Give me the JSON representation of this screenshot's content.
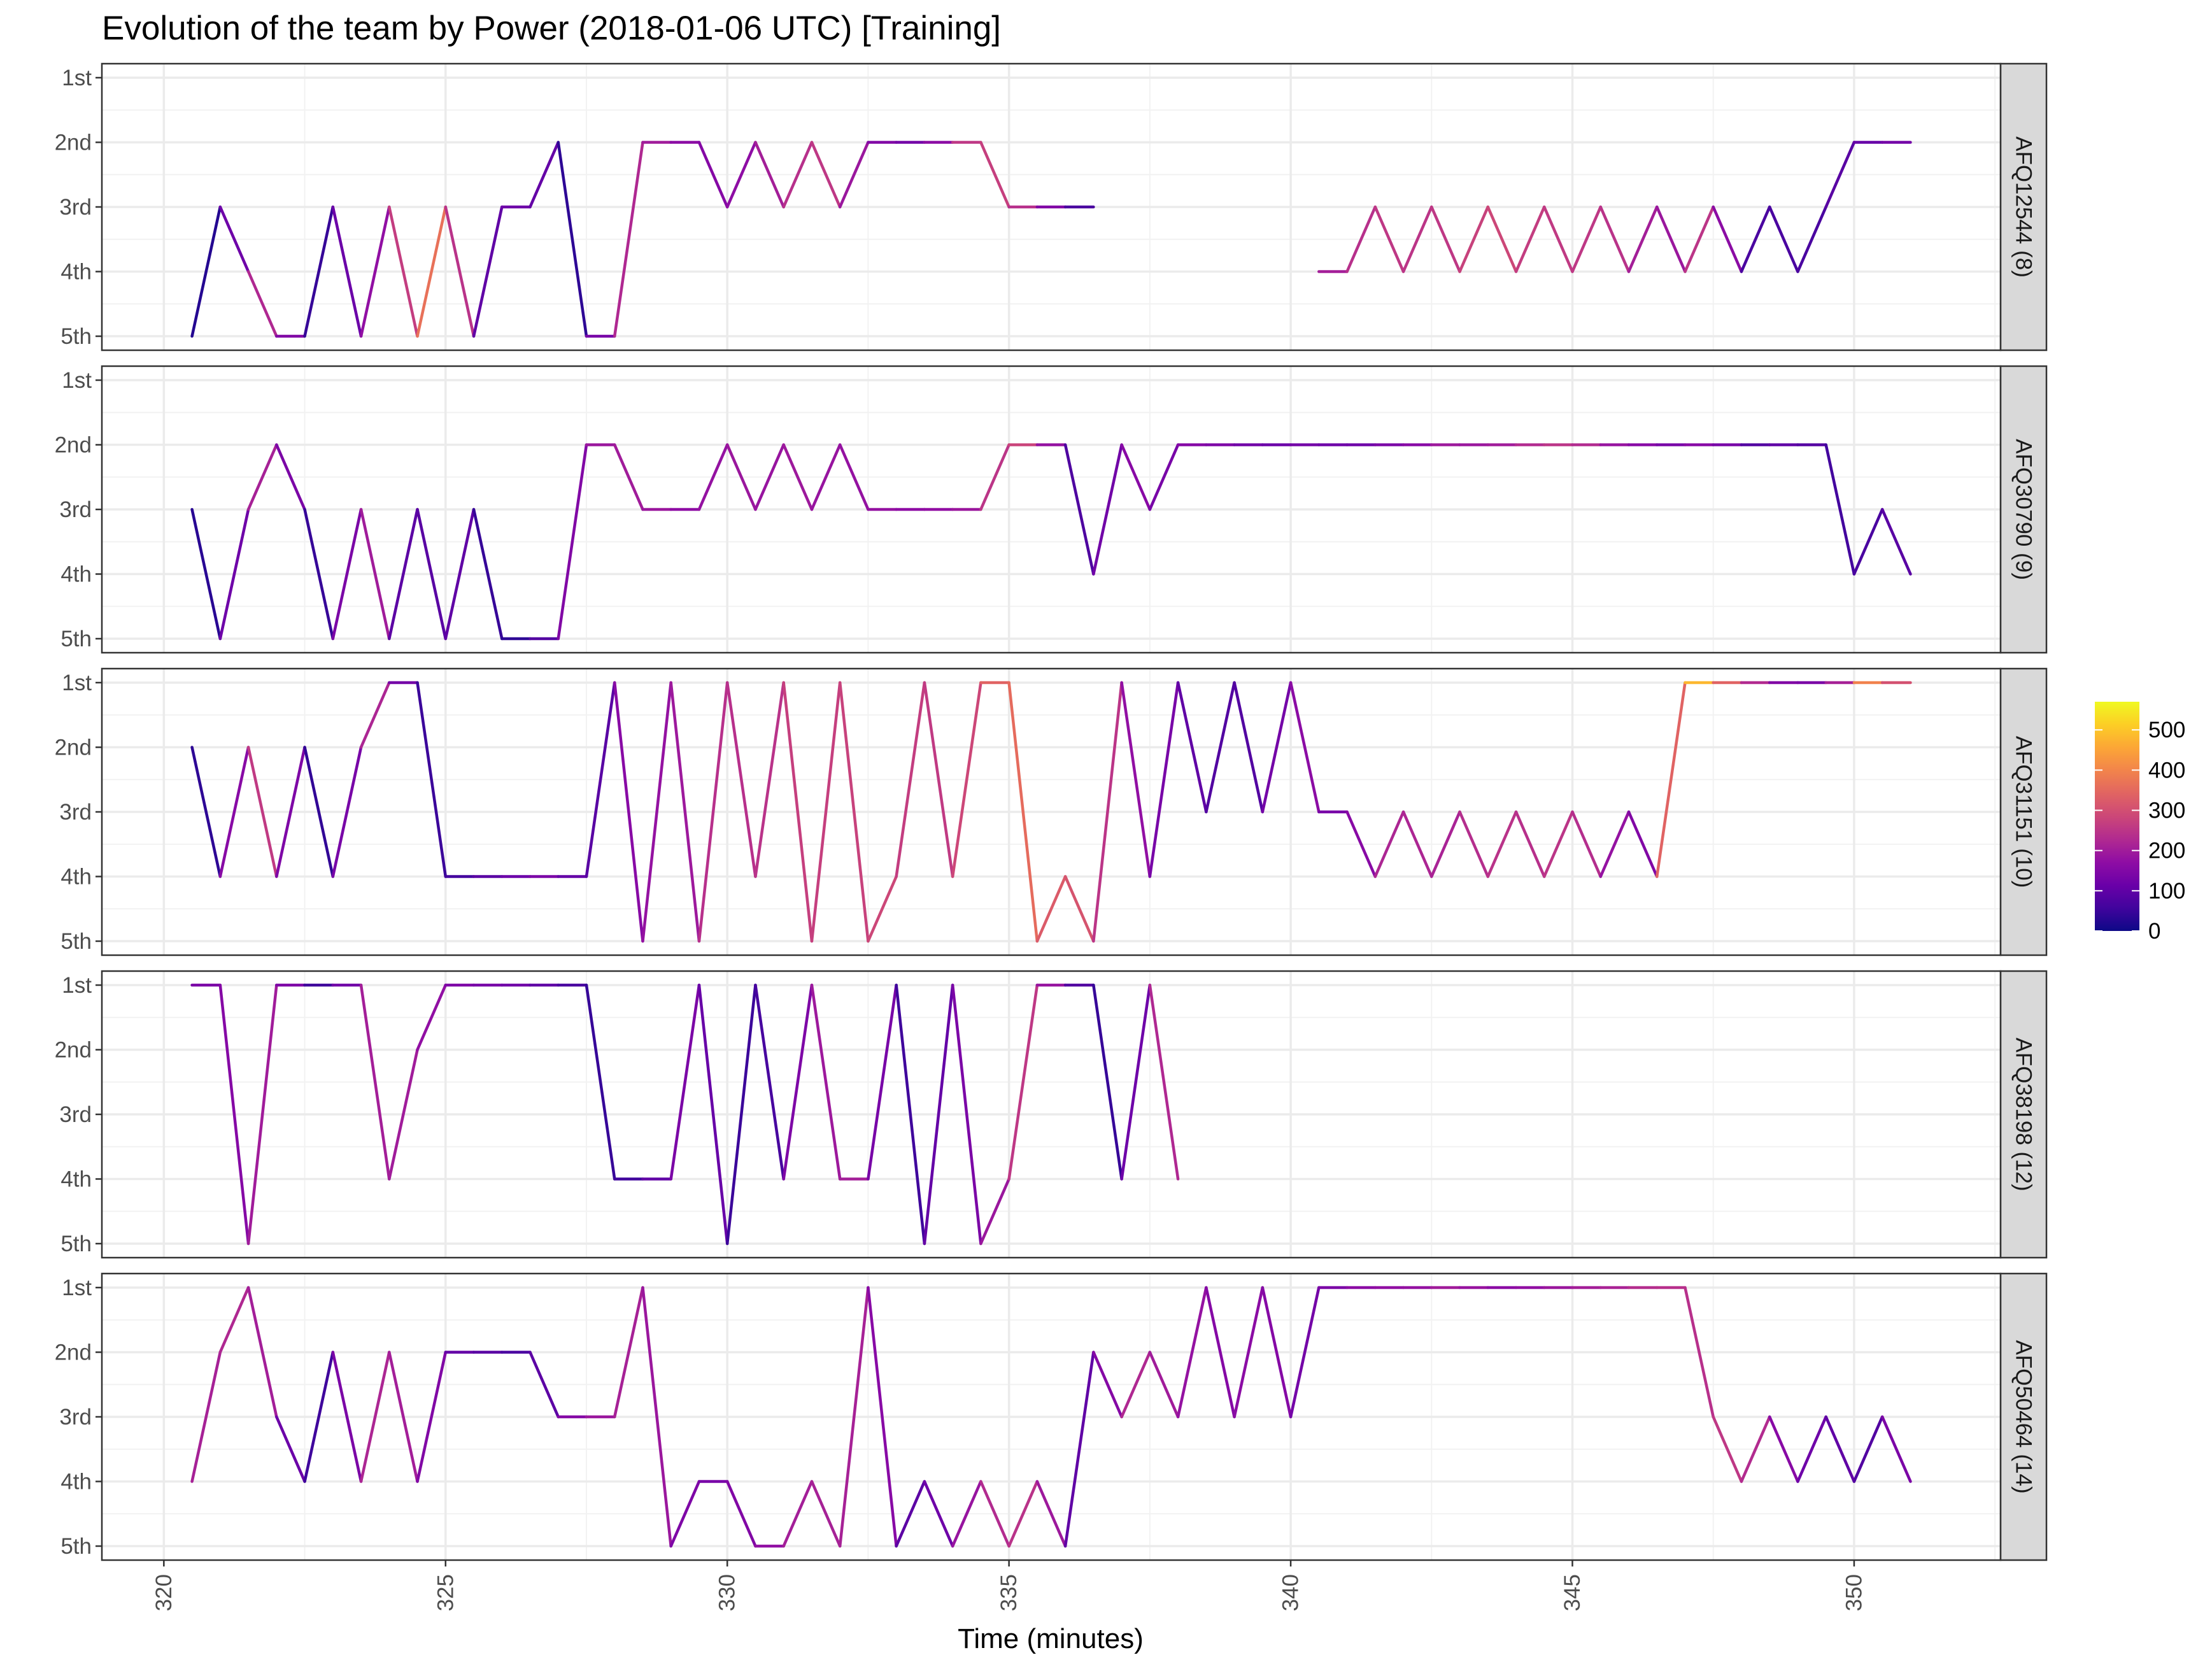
{
  "chart_data": {
    "type": "line",
    "title": "Evolution of the team by Power (2018-01-06 UTC) [Training]",
    "xlabel": "Time (minutes)",
    "ylabel": "",
    "xlim": [
      318.9,
      352.6
    ],
    "xticks": [
      320,
      325,
      330,
      335,
      340,
      345,
      350
    ],
    "x_tick_labels": [
      "320",
      "325",
      "330",
      "335",
      "340",
      "345",
      "350"
    ],
    "y_categories": [
      "1st",
      "2nd",
      "3rd",
      "4th",
      "5th"
    ],
    "grid": true,
    "color_scale": {
      "name": "plasma",
      "limits": [
        0,
        570
      ],
      "ticks": [
        0,
        100,
        200,
        300,
        400,
        500
      ],
      "tick_labels": [
        "0",
        "100",
        "200",
        "300",
        "400",
        "500"
      ],
      "legend_position": "right",
      "stops": [
        "#0d0887",
        "#41049d",
        "#6a00a8",
        "#8f0da4",
        "#b12a90",
        "#cc4778",
        "#e16462",
        "#f2844b",
        "#fca636",
        "#fcce25",
        "#f0f921"
      ]
    },
    "panels": [
      {
        "label": "AFQ12544 (8)",
        "segments": [
          {
            "x": [
              320.5,
              321.0,
              321.5,
              322.0,
              322.5,
              323.0,
              323.5,
              324.0,
              324.5,
              325.0,
              325.5,
              326.0,
              326.5,
              327.0,
              327.5,
              328.0,
              328.5,
              329.0,
              329.5,
              330.0,
              330.5,
              331.0,
              331.5,
              332.0,
              332.5,
              333.0,
              333.5,
              334.0,
              334.5,
              335.0,
              335.5,
              336.0,
              336.5
            ],
            "y": [
              5,
              3,
              4,
              5,
              5,
              3,
              5,
              3,
              5,
              3,
              5,
              3,
              3,
              2,
              5,
              5,
              2,
              2,
              2,
              3,
              2,
              3,
              2,
              3,
              2,
              2,
              2,
              2,
              2,
              3,
              3,
              3,
              3
            ],
            "power": [
              20,
              30,
              210,
              240,
              60,
              30,
              200,
              150,
              380,
              350,
              140,
              60,
              180,
              30,
              40,
              230,
              220,
              180,
              150,
              160,
              180,
              230,
              250,
              260,
              120,
              180,
              80,
              250,
              260,
              280,
              200,
              100,
              40
            ]
          },
          {
            "x": [
              340.5,
              341.0,
              341.5,
              342.0,
              342.5,
              343.0,
              343.5,
              344.0,
              344.5,
              345.0,
              345.5,
              346.0,
              346.5,
              347.0,
              347.5,
              348.0,
              348.5,
              349.0,
              349.5,
              350.0,
              350.5,
              351.0
            ],
            "y": [
              4,
              4,
              3,
              4,
              3,
              4,
              3,
              4,
              3,
              4,
              3,
              4,
              3,
              4,
              3,
              4,
              3,
              4,
              3,
              2,
              2,
              2
            ],
            "power": [
              180,
              230,
              250,
              260,
              240,
              270,
              280,
              290,
              240,
              280,
              230,
              260,
              150,
              230,
              270,
              60,
              80,
              60,
              80,
              100,
              120,
              140
            ]
          }
        ]
      },
      {
        "label": "AFQ30790 (9)",
        "segments": [
          {
            "x": [
              320.5,
              321.0,
              321.5,
              322.0,
              322.5,
              323.0,
              323.5,
              324.0,
              324.5,
              325.0,
              325.5,
              326.0,
              326.5,
              327.0,
              327.5,
              328.0,
              328.5,
              329.0,
              329.5,
              330.0,
              330.5,
              331.0,
              331.5,
              332.0,
              332.5,
              333.0,
              333.5,
              334.0,
              334.5,
              335.0,
              335.5,
              336.0,
              336.5,
              337.0,
              337.5,
              338.0,
              338.5,
              339.0,
              339.5,
              340.0,
              340.5,
              341.0,
              341.5,
              342.0,
              342.5,
              343.0,
              343.5,
              344.0,
              344.5,
              345.0,
              345.5,
              346.0,
              346.5,
              347.0,
              347.5,
              348.0,
              348.5,
              349.0,
              349.5,
              350.0,
              350.5,
              351.0
            ],
            "y": [
              3,
              5,
              3,
              2,
              3,
              5,
              3,
              5,
              3,
              5,
              3,
              5,
              5,
              5,
              2,
              2,
              3,
              3,
              3,
              2,
              3,
              2,
              3,
              2,
              3,
              3,
              3,
              3,
              3,
              2,
              2,
              2,
              4,
              2,
              3,
              2,
              2,
              2,
              2,
              2,
              2,
              2,
              2,
              2,
              2,
              2,
              2,
              2,
              2,
              2,
              2,
              2,
              2,
              2,
              2,
              2,
              2,
              2,
              2,
              4,
              3,
              4
            ],
            "power": [
              20,
              40,
              200,
              220,
              60,
              30,
              250,
              150,
              40,
              140,
              60,
              30,
              40,
              120,
              180,
              200,
              200,
              180,
              160,
              200,
              180,
              190,
              200,
              170,
              190,
              170,
              170,
              180,
              200,
              300,
              260,
              100,
              50,
              200,
              120,
              150,
              160,
              130,
              120,
              110,
              150,
              90,
              150,
              130,
              190,
              200,
              180,
              220,
              240,
              260,
              200,
              170,
              150,
              120,
              200,
              70,
              90,
              110,
              60,
              60,
              80,
              100
            ]
          }
        ]
      },
      {
        "label": "AFQ31151 (10)",
        "segments": [
          {
            "x": [
              320.5,
              321.0,
              321.5,
              322.0,
              322.5,
              323.0,
              323.5,
              324.0,
              324.5,
              325.0,
              325.5,
              326.0,
              326.5,
              327.0,
              327.5,
              328.0,
              328.5,
              329.0,
              329.5,
              330.0,
              330.5,
              331.0,
              331.5,
              332.0,
              332.5,
              333.0,
              333.5,
              334.0,
              334.5,
              335.0,
              335.5,
              336.0,
              336.5,
              337.0,
              337.5,
              338.0,
              338.5,
              339.0,
              339.5,
              340.0,
              340.5,
              341.0,
              341.5,
              342.0,
              342.5,
              343.0,
              343.5,
              344.0,
              344.5,
              345.0,
              345.5,
              346.0,
              346.5,
              347.0,
              347.5,
              348.0,
              348.5,
              349.0,
              349.5,
              350.0,
              350.5,
              351.0
            ],
            "y": [
              2,
              4,
              2,
              4,
              2,
              4,
              2,
              1,
              1,
              4,
              4,
              4,
              4,
              4,
              4,
              1,
              5,
              1,
              5,
              1,
              4,
              1,
              5,
              1,
              5,
              4,
              1,
              4,
              1,
              1,
              5,
              4,
              5,
              1,
              4,
              1,
              3,
              1,
              3,
              1,
              3,
              3,
              4,
              3,
              4,
              3,
              4,
              3,
              4,
              3,
              4,
              3,
              4,
              1,
              1,
              1,
              1,
              1,
              1,
              1,
              1,
              1
            ],
            "power": [
              30,
              40,
              280,
              240,
              50,
              30,
              240,
              200,
              60,
              40,
              80,
              100,
              130,
              150,
              60,
              120,
              200,
              160,
              230,
              250,
              230,
              260,
              280,
              260,
              290,
              280,
              250,
              270,
              300,
              380,
              330,
              320,
              300,
              200,
              150,
              120,
              80,
              80,
              80,
              180,
              150,
              120,
              200,
              240,
              200,
              230,
              240,
              250,
              230,
              270,
              200,
              160,
              140,
              540,
              420,
              260,
              200,
              100,
              180,
              240,
              550,
              60
            ]
          }
        ]
      },
      {
        "label": "AFQ38198 (12)",
        "segments": [
          {
            "x": [
              320.5,
              321.0,
              321.5,
              322.0,
              322.5,
              323.0,
              323.5,
              324.0,
              324.5,
              325.0,
              325.5,
              326.0,
              326.5,
              327.0,
              327.5,
              328.0,
              328.5,
              329.0,
              329.5,
              330.0,
              330.5,
              331.0,
              331.5,
              332.0,
              332.5,
              333.0,
              333.5,
              334.0,
              334.5,
              335.0,
              335.5,
              336.0,
              336.5,
              337.0,
              337.5,
              338.0
            ],
            "y": [
              1,
              1,
              5,
              1,
              1,
              1,
              1,
              4,
              2,
              1,
              1,
              1,
              1,
              1,
              1,
              4,
              4,
              4,
              1,
              5,
              1,
              4,
              1,
              4,
              4,
              1,
              5,
              1,
              5,
              4,
              1,
              1,
              1,
              4,
              1,
              4
            ],
            "power": [
              150,
              130,
              180,
              220,
              70,
              40,
              210,
              200,
              200,
              150,
              140,
              130,
              120,
              80,
              60,
              30,
              80,
              120,
              160,
              60,
              40,
              90,
              200,
              190,
              220,
              50,
              60,
              150,
              130,
              250,
              260,
              110,
              50,
              40,
              200,
              250
            ]
          }
        ]
      },
      {
        "label": "AFQ50464 (14)",
        "segments": [
          {
            "x": [
              320.5,
              321.0,
              321.5,
              322.0,
              322.5,
              323.0,
              323.5,
              324.0,
              324.5,
              325.0,
              325.5,
              326.0,
              326.5,
              327.0,
              327.5,
              328.0,
              328.5,
              329.0,
              329.5,
              330.0,
              330.5,
              331.0,
              331.5,
              332.0,
              332.5,
              333.0,
              333.5,
              334.0,
              334.5,
              335.0,
              335.5,
              336.0,
              336.5,
              337.0,
              337.5,
              338.0,
              338.5,
              339.0,
              339.5,
              340.0,
              340.5,
              341.0,
              341.5,
              342.0,
              342.5,
              343.0,
              343.5,
              344.0,
              344.5,
              345.0,
              345.5,
              346.0,
              346.5,
              347.0,
              347.5,
              348.0,
              348.5,
              349.0,
              349.5,
              350.0,
              350.5,
              351.0
            ],
            "y": [
              4,
              2,
              1,
              3,
              4,
              2,
              4,
              2,
              4,
              2,
              2,
              2,
              2,
              3,
              3,
              3,
              1,
              5,
              4,
              4,
              5,
              5,
              4,
              5,
              1,
              5,
              4,
              5,
              4,
              5,
              4,
              5,
              2,
              3,
              2,
              3,
              1,
              3,
              1,
              3,
              1,
              1,
              1,
              1,
              1,
              1,
              1,
              1,
              1,
              1,
              1,
              1,
              1,
              1,
              3,
              4,
              3,
              4,
              3,
              4,
              3,
              4
            ],
            "power": [
              200,
              220,
              230,
              180,
              50,
              60,
              220,
              220,
              190,
              110,
              100,
              80,
              60,
              130,
              180,
              200,
              220,
              160,
              130,
              140,
              160,
              190,
              220,
              200,
              220,
              100,
              90,
              150,
              220,
              240,
              250,
              140,
              60,
              250,
              200,
              200,
              160,
              150,
              180,
              130,
              130,
              150,
              180,
              170,
              190,
              210,
              160,
              170,
              180,
              200,
              210,
              220,
              250,
              230,
              250,
              260,
              200,
              120,
              120,
              80,
              80,
              200
            ]
          }
        ]
      }
    ]
  }
}
